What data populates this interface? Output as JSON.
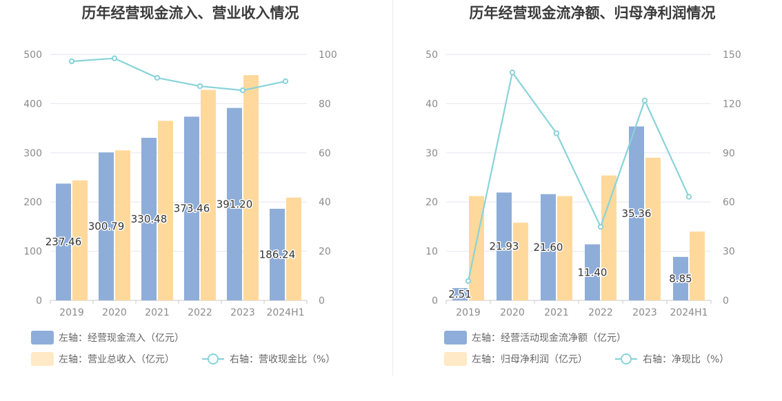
{
  "colors": {
    "bar_blue": "#8eadd9",
    "bar_yellow": "#ffd99b",
    "bar_yellow_legend": "#ffe9c6",
    "line": "#88d3d9",
    "axis": "#c9c9c9",
    "grid": "#e3e6ef"
  },
  "chart_data": [
    {
      "type": "bar",
      "title": "历年经营现金流入、营业收入情况",
      "categories": [
        "2019",
        "2020",
        "2021",
        "2022",
        "2023",
        "2024H1"
      ],
      "ylim_left": [
        0,
        500
      ],
      "yticks_left": [
        0,
        100,
        200,
        300,
        400,
        500
      ],
      "ylim_right": [
        0,
        100
      ],
      "yticks_right": [
        0,
        20,
        40,
        60,
        80,
        100
      ],
      "grid": true,
      "legend_position": "bottom-left",
      "series": [
        {
          "name": "左轴：经营现金流入（亿元）",
          "kind": "bar",
          "axis": "left",
          "values": [
            237.46,
            300.79,
            330.48,
            373.46,
            391.2,
            186.24
          ],
          "labels": [
            "237.46",
            "300.79",
            "330.48",
            "373.46",
            "391.20",
            "186.24"
          ]
        },
        {
          "name": "左轴：营业总收入（亿元）",
          "kind": "bar",
          "axis": "left",
          "values": [
            244,
            305,
            365,
            428,
            458,
            209
          ]
        },
        {
          "name": "右轴：营收现金比（%）",
          "kind": "line",
          "axis": "right",
          "values": [
            97.2,
            98.4,
            90.5,
            87.1,
            85.4,
            89.1
          ]
        }
      ]
    },
    {
      "type": "bar",
      "title": "历年经营现金流净额、归母净利润情况",
      "categories": [
        "2019",
        "2020",
        "2021",
        "2022",
        "2023",
        "2024H1"
      ],
      "ylim_left": [
        0,
        50
      ],
      "yticks_left": [
        0,
        10,
        20,
        30,
        40,
        50
      ],
      "ylim_right": [
        0,
        150
      ],
      "yticks_right": [
        0,
        30,
        60,
        90,
        120,
        150
      ],
      "grid": true,
      "legend_position": "bottom-left",
      "series": [
        {
          "name": "左轴：经营活动现金流净额（亿元）",
          "kind": "bar",
          "axis": "left",
          "values": [
            2.51,
            21.93,
            21.6,
            11.4,
            35.36,
            8.85
          ],
          "labels": [
            "2.51",
            "21.93",
            "21.60",
            "11.40",
            "35.36",
            "8.85"
          ]
        },
        {
          "name": "左轴：归母净利润（亿元）",
          "kind": "bar",
          "axis": "left",
          "values": [
            21.2,
            15.8,
            21.2,
            25.4,
            29.0,
            14.0
          ]
        },
        {
          "name": "右轴：净现比（%）",
          "kind": "line",
          "axis": "right",
          "values": [
            11.8,
            139.0,
            101.9,
            44.9,
            121.9,
            63.2
          ]
        }
      ]
    }
  ]
}
